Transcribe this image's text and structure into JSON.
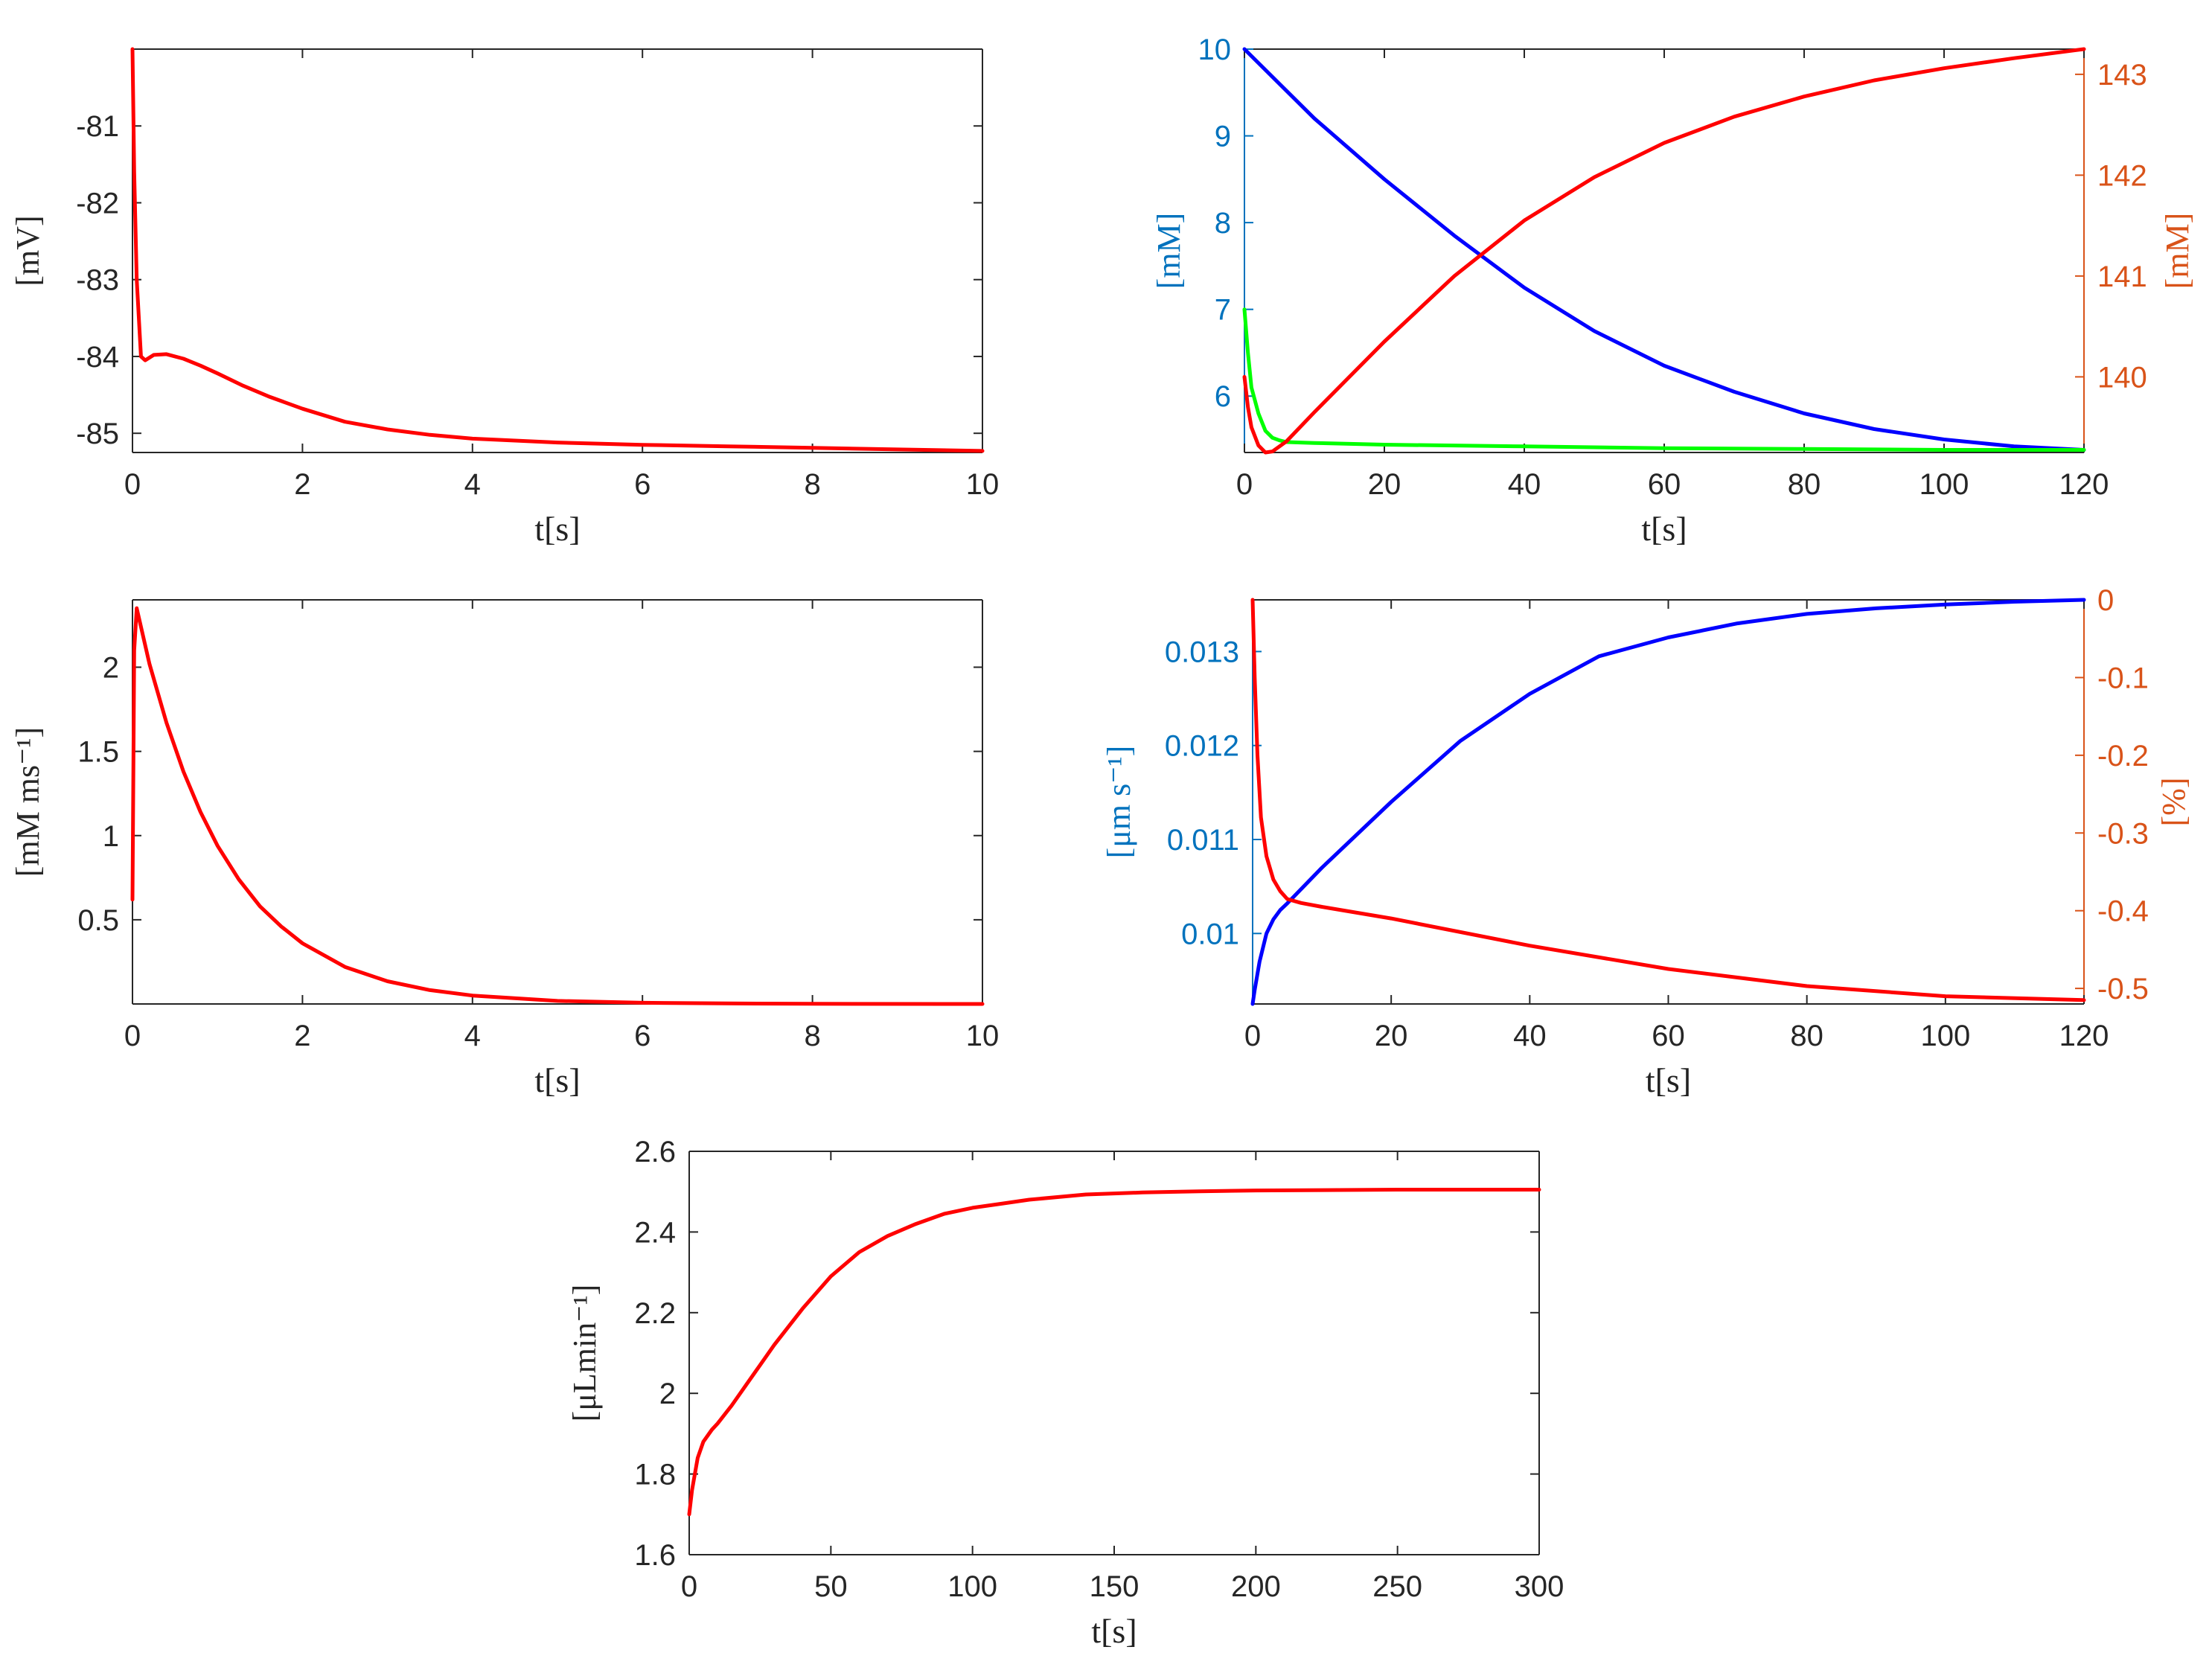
{
  "chart_data": [
    {
      "type": "line",
      "title": "",
      "xlabel": "t[s]",
      "ylabel": "[mV]",
      "xlim": [
        0,
        10
      ],
      "ylim": [
        -85.25,
        -80.0
      ],
      "xticks": [
        0,
        2,
        4,
        6,
        8,
        10
      ],
      "yticks": [
        -85,
        -84,
        -83,
        -82,
        -81
      ],
      "yticklabels": [
        "-85",
        "-84",
        "-83",
        "-82",
        "-81"
      ],
      "series": [
        {
          "color": "#ff0000",
          "x": [
            0,
            0.02,
            0.05,
            0.1,
            0.15,
            0.25,
            0.4,
            0.6,
            0.8,
            1.0,
            1.3,
            1.6,
            2.0,
            2.5,
            3.0,
            3.5,
            4.0,
            5.0,
            6.0,
            7.0,
            8.0,
            9.0,
            10.0
          ],
          "y": [
            -80.0,
            -81.6,
            -83.0,
            -84.0,
            -84.05,
            -83.98,
            -83.97,
            -84.03,
            -84.12,
            -84.22,
            -84.38,
            -84.52,
            -84.68,
            -84.85,
            -84.95,
            -85.02,
            -85.07,
            -85.12,
            -85.15,
            -85.17,
            -85.19,
            -85.21,
            -85.23
          ]
        }
      ]
    },
    {
      "type": "line",
      "title": "",
      "xlabel": "t[s]",
      "ylabel": "[mM]",
      "ylabel_right": "[mM]",
      "xlim": [
        0,
        120
      ],
      "ylim": [
        5.35,
        10
      ],
      "ylim_right": [
        139.25,
        143.25
      ],
      "xticks": [
        0,
        20,
        40,
        60,
        80,
        100,
        120
      ],
      "yticks": [
        6,
        7,
        8,
        9,
        10
      ],
      "yticks_right": [
        140,
        141,
        142,
        143
      ],
      "left_axis_color": "#0072bd",
      "right_axis_color": "#d95319",
      "series": [
        {
          "color": "#0000ff",
          "axis": "left",
          "x": [
            0,
            10,
            20,
            30,
            40,
            50,
            60,
            70,
            80,
            90,
            100,
            110,
            120
          ],
          "y": [
            10.0,
            9.2,
            8.5,
            7.85,
            7.25,
            6.75,
            6.35,
            6.05,
            5.8,
            5.62,
            5.5,
            5.42,
            5.38
          ]
        },
        {
          "color": "#00ff00",
          "axis": "left",
          "x": [
            0,
            0.5,
            1,
            2,
            3,
            4,
            5,
            6,
            10,
            20,
            40,
            60,
            80,
            100,
            120
          ],
          "y": [
            7.0,
            6.5,
            6.1,
            5.8,
            5.6,
            5.52,
            5.49,
            5.47,
            5.46,
            5.44,
            5.42,
            5.4,
            5.39,
            5.38,
            5.38
          ]
        },
        {
          "color": "#ff0000",
          "axis": "right",
          "x": [
            0,
            0.5,
            1,
            2,
            3,
            4,
            6,
            10,
            15,
            20,
            30,
            40,
            50,
            60,
            70,
            80,
            90,
            100,
            110,
            120
          ],
          "y": [
            140.0,
            139.7,
            139.5,
            139.32,
            139.25,
            139.26,
            139.36,
            139.65,
            140.0,
            140.35,
            141.0,
            141.55,
            141.98,
            142.32,
            142.58,
            142.78,
            142.94,
            143.06,
            143.16,
            143.25
          ]
        }
      ]
    },
    {
      "type": "line",
      "title": "",
      "xlabel": "t[s]",
      "ylabel": "[mM ms⁻¹]",
      "xlim": [
        0,
        10
      ],
      "ylim": [
        0,
        2.4
      ],
      "xticks": [
        0,
        2,
        4,
        6,
        8,
        10
      ],
      "yticks": [
        0.5,
        1,
        1.5,
        2
      ],
      "yticklabels": [
        "0.5",
        "1",
        "1.5",
        "2"
      ],
      "series": [
        {
          "color": "#ff0000",
          "x": [
            0,
            0.02,
            0.05,
            0.2,
            0.4,
            0.6,
            0.8,
            1.0,
            1.25,
            1.5,
            1.75,
            2.0,
            2.5,
            3.0,
            3.5,
            4.0,
            5.0,
            6.0,
            7.0,
            8.0,
            10.0
          ],
          "y": [
            0.62,
            2.1,
            2.35,
            2.02,
            1.67,
            1.38,
            1.14,
            0.94,
            0.74,
            0.58,
            0.46,
            0.36,
            0.22,
            0.135,
            0.082,
            0.05,
            0.018,
            0.007,
            0.003,
            0.001,
            0.0
          ]
        }
      ]
    },
    {
      "type": "line",
      "title": "",
      "xlabel": "t[s]",
      "ylabel": "[μm s⁻¹]",
      "ylabel_right": "[%]",
      "xlim": [
        0,
        120
      ],
      "ylim": [
        0.00925,
        0.01355
      ],
      "ylim_right": [
        -0.52,
        0
      ],
      "xticks": [
        0,
        20,
        40,
        60,
        80,
        100,
        120
      ],
      "yticks": [
        0.01,
        0.011,
        0.012,
        0.013
      ],
      "yticklabels": [
        "0.01",
        "0.011",
        "0.012",
        "0.013"
      ],
      "yticks_right": [
        0,
        -0.1,
        -0.2,
        -0.3,
        -0.4,
        -0.5
      ],
      "yticklabels_right": [
        "0",
        "-0.1",
        "-0.2",
        "-0.3",
        "-0.4",
        "-0.5"
      ],
      "left_axis_color": "#0072bd",
      "right_axis_color": "#d95319",
      "series": [
        {
          "color": "#0000ff",
          "axis": "left",
          "x": [
            0,
            0.3,
            1,
            2,
            3,
            4,
            5,
            10,
            20,
            30,
            40,
            50,
            60,
            70,
            80,
            90,
            100,
            110,
            120
          ],
          "y": [
            0.00925,
            0.0094,
            0.0097,
            0.01,
            0.01015,
            0.01025,
            0.01032,
            0.0107,
            0.0114,
            0.01205,
            0.01255,
            0.01295,
            0.01315,
            0.0133,
            0.0134,
            0.01346,
            0.0135,
            0.01353,
            0.01355
          ]
        },
        {
          "color": "#ff0000",
          "axis": "right",
          "x": [
            0,
            0.3,
            0.7,
            1.2,
            2,
            3,
            4,
            5,
            7,
            10,
            20,
            40,
            60,
            80,
            100,
            120
          ],
          "y": [
            0,
            -0.1,
            -0.2,
            -0.28,
            -0.33,
            -0.36,
            -0.375,
            -0.385,
            -0.39,
            -0.395,
            -0.41,
            -0.445,
            -0.475,
            -0.497,
            -0.51,
            -0.515
          ]
        }
      ]
    },
    {
      "type": "line",
      "title": "",
      "xlabel": "t[s]",
      "ylabel": "[μLmin⁻¹]",
      "xlim": [
        0,
        300
      ],
      "ylim": [
        1.6,
        2.6
      ],
      "xticks": [
        0,
        50,
        100,
        150,
        200,
        250,
        300
      ],
      "yticks": [
        1.6,
        1.8,
        2,
        2.2,
        2.4,
        2.6
      ],
      "yticklabels": [
        "1.6",
        "1.8",
        "2",
        "2.2",
        "2.4",
        "2.6"
      ],
      "series": [
        {
          "color": "#ff0000",
          "x": [
            0,
            1,
            2,
            3,
            5,
            8,
            10,
            15,
            20,
            25,
            30,
            40,
            50,
            60,
            70,
            80,
            90,
            100,
            110,
            120,
            140,
            160,
            180,
            200,
            250,
            300
          ],
          "y": [
            1.7,
            1.76,
            1.8,
            1.84,
            1.88,
            1.91,
            1.925,
            1.97,
            2.02,
            2.07,
            2.12,
            2.21,
            2.29,
            2.35,
            2.39,
            2.42,
            2.445,
            2.46,
            2.47,
            2.48,
            2.493,
            2.498,
            2.501,
            2.503,
            2.505,
            2.505
          ]
        }
      ]
    }
  ]
}
